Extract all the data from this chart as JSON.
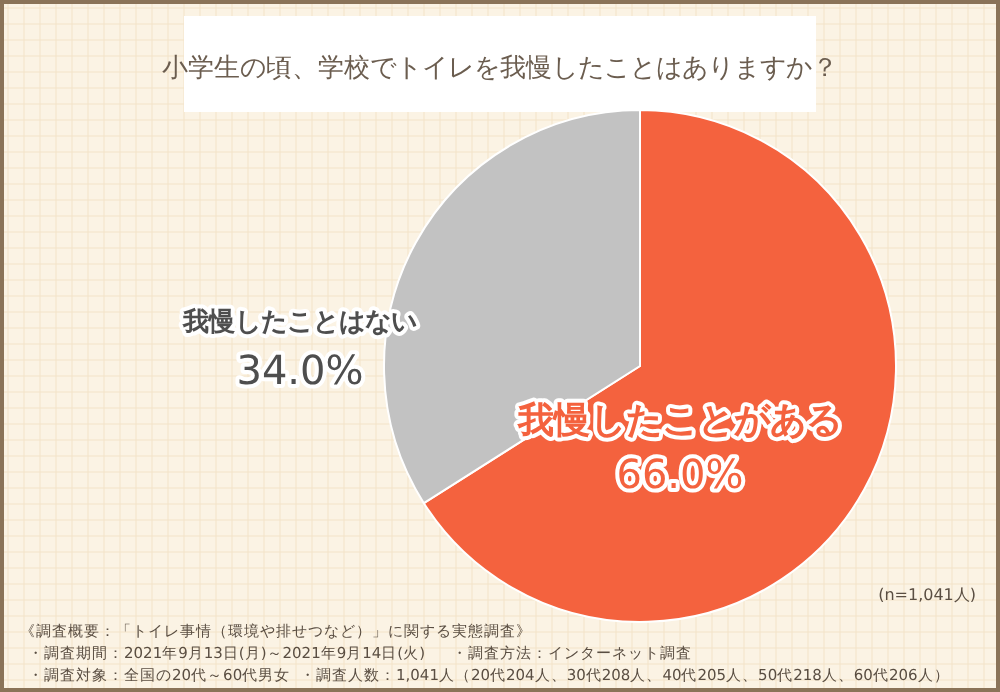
{
  "chart_data": {
    "type": "pie",
    "title": "小学生の頃、学校でトイレを我慢したことはありますか？",
    "categories": [
      "我慢したことがある",
      "我慢したことはない"
    ],
    "values": [
      66.0,
      34.0
    ],
    "value_labels": [
      "66.0%",
      "34.0%"
    ],
    "colors": [
      "#f4623e",
      "#c2c2c2"
    ],
    "annotations": [
      "(n=1,041人)",
      "《調査概要：「トイレ事情（環境や排せつなど）」に関する実態調査》",
      "・調査期間：2021年9月13日(月)～2021年9月14日(火)",
      "・調査方法：インターネット調査",
      "・調査対象：全国の20代～60代男女",
      "・調査人数：1,041人（20代204人、30代208人、40代205人、50代218人、60代206人）"
    ]
  }
}
